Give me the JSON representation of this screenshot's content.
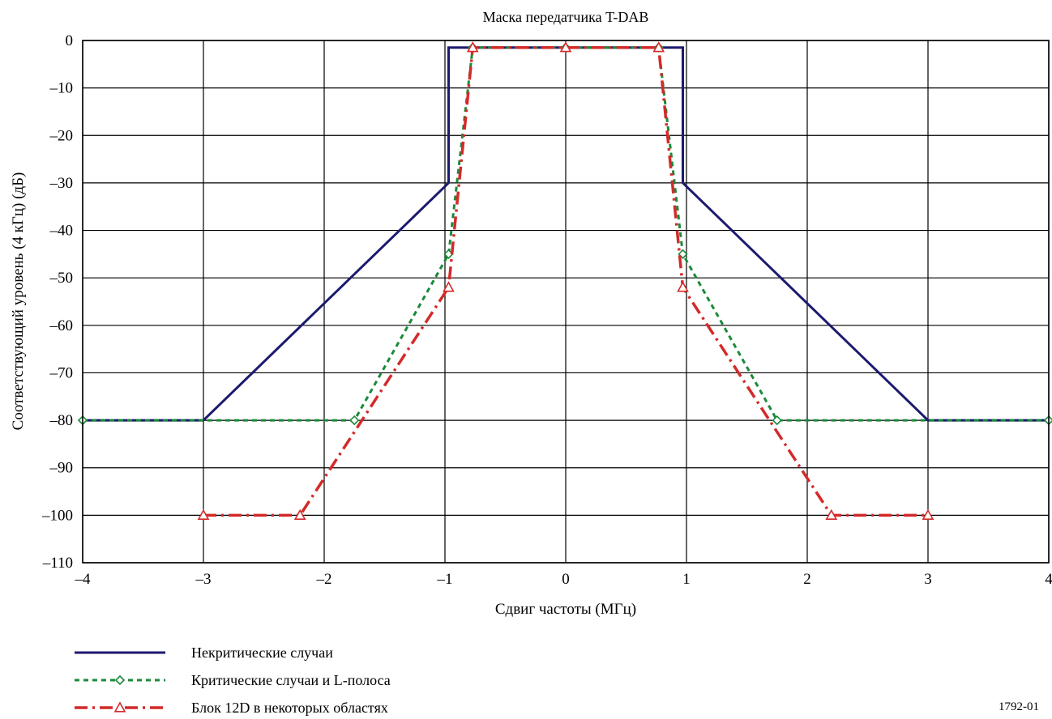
{
  "chart_data": {
    "type": "line",
    "title": "Маска передатчика T-DAB",
    "xlabel": "Сдвиг частоты (МГц)",
    "ylabel": "Соответствующий уровень (4 кГц) (дБ)",
    "xlim": [
      -4,
      4
    ],
    "ylim": [
      -110,
      0
    ],
    "grid": true,
    "x_ticks": [
      -4,
      -3,
      -2,
      -1,
      0,
      1,
      2,
      3,
      4
    ],
    "x_tick_labels": [
      "–4",
      "–3",
      "–2",
      "–1",
      "0",
      "1",
      "2",
      "3",
      "4"
    ],
    "y_ticks": [
      0,
      -10,
      -20,
      -30,
      -40,
      -50,
      -60,
      -70,
      -80,
      -90,
      -100,
      -110
    ],
    "y_tick_labels": [
      "0",
      "–10",
      "–20",
      "–30",
      "–40",
      "–50",
      "–60",
      "–70",
      "–80",
      "–90",
      "–100",
      "–110"
    ],
    "legend_position": "bottom-left",
    "series": [
      {
        "name": "Некритические случаи",
        "color": "#1c1a6e",
        "style": "solid",
        "marker": "none",
        "points": [
          [
            -4,
            -80
          ],
          [
            -3,
            -80
          ],
          [
            -0.97,
            -30
          ],
          [
            -0.97,
            -1.5
          ],
          [
            0.97,
            -1.5
          ],
          [
            0.97,
            -30
          ],
          [
            3,
            -80
          ],
          [
            4,
            -80
          ]
        ]
      },
      {
        "name": "Критические случаи и L-полоса",
        "color": "#1a8a3a",
        "style": "dotted",
        "marker": "diamond",
        "points": [
          [
            -4,
            -80
          ],
          [
            -1.75,
            -80
          ],
          [
            -0.97,
            -45
          ],
          [
            -0.77,
            -1.5
          ],
          [
            0,
            -1.5
          ],
          [
            0.77,
            -1.5
          ],
          [
            0.97,
            -45
          ],
          [
            1.75,
            -80
          ],
          [
            4,
            -80
          ]
        ],
        "marked": [
          [
            -4,
            -80
          ],
          [
            -1.75,
            -80
          ],
          [
            -0.97,
            -45
          ],
          [
            -0.77,
            -1.5
          ],
          [
            0,
            -1.5
          ],
          [
            0.77,
            -1.5
          ],
          [
            0.97,
            -45
          ],
          [
            1.75,
            -80
          ],
          [
            4,
            -80
          ]
        ]
      },
      {
        "name": "Блок 12D в некоторых областях",
        "color": "#d42a2a",
        "style": "dashdot",
        "marker": "triangle",
        "points": [
          [
            -3,
            -100
          ],
          [
            -2.2,
            -100
          ],
          [
            -0.97,
            -52
          ],
          [
            -0.77,
            -1.5
          ],
          [
            0,
            -1.5
          ],
          [
            0.77,
            -1.5
          ],
          [
            0.97,
            -52
          ],
          [
            2.2,
            -100
          ],
          [
            3,
            -100
          ]
        ],
        "marked": [
          [
            -3,
            -100
          ],
          [
            -2.2,
            -100
          ],
          [
            -0.97,
            -52
          ],
          [
            -0.77,
            -1.5
          ],
          [
            0,
            -1.5
          ],
          [
            0.77,
            -1.5
          ],
          [
            0.97,
            -52
          ],
          [
            2.2,
            -100
          ],
          [
            3,
            -100
          ]
        ]
      }
    ],
    "figure_id": "1792-01"
  }
}
